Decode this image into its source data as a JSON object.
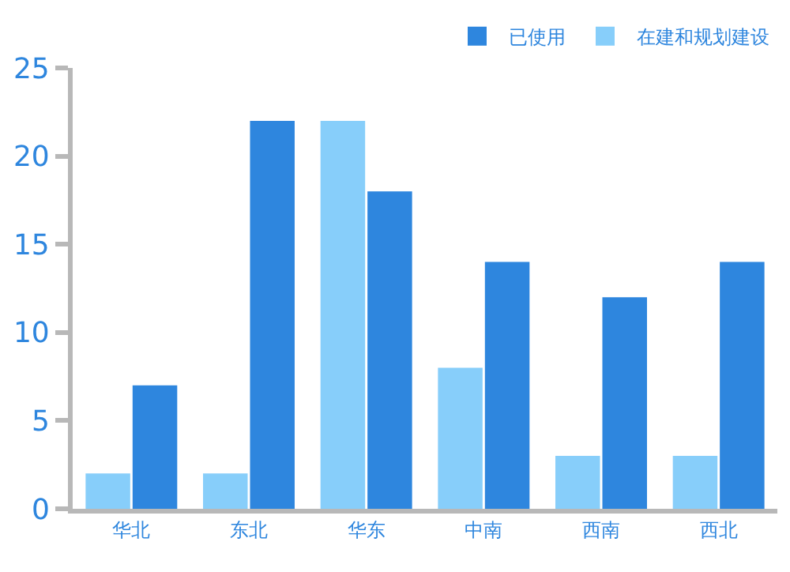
{
  "chart_data": {
    "type": "bar",
    "categories": [
      "华北",
      "东北",
      "华东",
      "中南",
      "西南",
      "西北"
    ],
    "series": [
      {
        "name": "在建和规划建设",
        "color": "#87cefa",
        "values": [
          2,
          2,
          22,
          8,
          3,
          3
        ]
      },
      {
        "name": "已使用",
        "color": "#2e86de",
        "values": [
          7,
          22,
          18,
          14,
          12,
          14
        ]
      }
    ],
    "ylim": [
      0,
      25
    ],
    "yticks": [
      0,
      5,
      10,
      15,
      20,
      25
    ],
    "legend": "top right"
  }
}
